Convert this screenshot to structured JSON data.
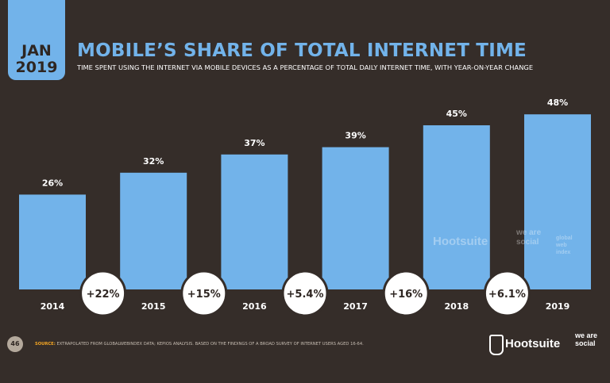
{
  "header": {
    "month": "JAN",
    "year": "2019",
    "title": "MOBILE’S SHARE OF TOTAL INTERNET TIME",
    "subtitle": "TIME SPENT USING THE INTERNET VIA MOBILE DEVICES AS A PERCENTAGE OF TOTAL DAILY INTERNET TIME, WITH YEAR-ON-YEAR CHANGE"
  },
  "chart_data": {
    "type": "bar",
    "categories": [
      "2014",
      "2015",
      "2016",
      "2017",
      "2018",
      "2019"
    ],
    "values": [
      26,
      32,
      37,
      39,
      45,
      48
    ],
    "value_labels": [
      "26%",
      "32%",
      "37%",
      "39%",
      "45%",
      "48%"
    ],
    "yoy_changes": [
      "+22%",
      "+15%",
      "+5.4%",
      "+16%",
      "+6.1%"
    ],
    "ylim": [
      0,
      50
    ],
    "grid": false,
    "bar_color": "#72b3ea",
    "label_color": "#ffffff"
  },
  "footer": {
    "page_number": "46",
    "source_label": "SOURCE:",
    "source_text": "EXTRAPOLATED FROM GLOBALWEBINDEX DATA; KEPIOS ANALYSIS. BASED ON THE FINDINGS OF A BROAD SURVEY OF INTERNET USERS AGED 16-64.",
    "logo_hootsuite": "Hootsuite",
    "logo_wearesocial": "we are social"
  },
  "watermark": {
    "hootsuite": "Hootsuite",
    "wearesocial": "we are social",
    "globalwebindex": "global web index"
  }
}
